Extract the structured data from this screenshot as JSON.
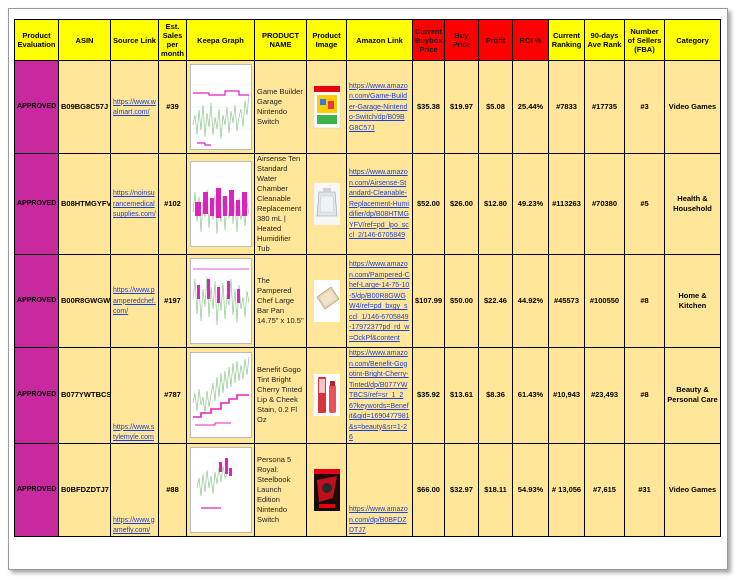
{
  "headers": {
    "eval": "Product Evaluation",
    "asin": "ASIN",
    "source": "Source Link",
    "sales": "Est. Sales per month",
    "keepa": "Keepa Graph",
    "name": "PRODUCT NAME",
    "image": "Product Image",
    "amazon": "Amazon Link",
    "buybox": "Current Buybox Price",
    "buy": "Buy Price",
    "profit": "Profit",
    "roi": "ROI %",
    "rank": "Current Ranking",
    "avg": "90-days Ave Rank",
    "sellers": "Number of Sellers (FBA)",
    "category": "Category"
  },
  "rows": [
    {
      "eval": "APPROVED",
      "asin": "B09BG8C57J",
      "source": "https://www.walmart.com/",
      "sales": "#39",
      "name": "Game Builder Garage Nintendo Switch",
      "amazon": "https://www.amazon.com/Game-Builder-Garage-Nintendo-Switch/dp/B09BG8C57J",
      "buybox": "$35.38",
      "buy": "$19.97",
      "profit": "$5.08",
      "roi": "25.44%",
      "rank": "#7833",
      "avg": "#17735",
      "sellers": "#3",
      "category": "Video Games",
      "image_icon": "game-builder-garage-box-icon"
    },
    {
      "eval": "APPROVED",
      "asin": "B08HTMGYFV",
      "source": "https://noinsurancemedicalsupplies.com/",
      "sales": "#102",
      "name": "Airsense Ten Standard Water Chamber Cleanable Replacement 380 mL | Heated Humidifier Tub",
      "amazon": "https://www.amazon.com/Airsense-Standard-Cleanable-Replacement-Humidifier/dp/B08HTMGYFV/ref=pd_lpo_sccl_2/146-6705849",
      "buybox": "$52.00",
      "buy": "$26.00",
      "profit": "$12.80",
      "roi": "49.23%",
      "rank": "#113263",
      "avg": "#70380",
      "sellers": "#5",
      "category": "Health & Household",
      "image_icon": "water-chamber-icon"
    },
    {
      "eval": "APPROVED",
      "asin": "B00R8GWGW4",
      "source": "https://www.pamperedchef.com/",
      "sales": "#197",
      "name": "The Pampered Chef Large Bar Pan 14.75\" x 10.5\"",
      "amazon": "https://www.amazon.com/Pampered-Chef-Large-14-75-10-5/dp/B00R8GWGW4/ref=pd_bxgy_sccl_1/146-6705849-1797237?pd_rd_w=OckPf&content",
      "buybox": "$107.99",
      "buy": "$50.00",
      "profit": "$22.46",
      "roi": "44.92%",
      "rank": "#45573",
      "avg": "#100550",
      "sellers": "#8",
      "category": "Home & Kitchen",
      "image_icon": "bar-pan-icon"
    },
    {
      "eval": "APPROVED",
      "asin": "B077YWTBCS",
      "source": "https://www.stylemyle.com",
      "sales": "#787",
      "name": "Benefit Gogo Tint Bright Cherry Tinted Lip & Cheek Stain, 0.2 Fl Oz",
      "amazon": "https://www.amazon.com/Benefit-Gogotint-Bright-Cherry-Tinted/dp/B077YWTBCS/ref=sr_1_26?keywords=Benefit&qid=1690477981&s=beauty&sr=1-26",
      "buybox": "$35.92",
      "buy": "$13.61",
      "profit": "$8.36",
      "roi": "61.43%",
      "rank": "#10,943",
      "avg": "#23,493",
      "sellers": "#8",
      "category": "Beauty & Personal Care",
      "image_icon": "lip-tint-bottle-icon"
    },
    {
      "eval": "APPROVED",
      "asin": "B0BFDZDTJ7",
      "source": "https://www.gamefly.com/",
      "sales": "#88",
      "name": "Persona 5 Royal: Steelbook Launch Edition Nintendo Switch",
      "amazon": "https://www.amazon.com/dp/B0BFDZDTJ7",
      "buybox": "$66.00",
      "buy": "$32.97",
      "profit": "$18.11",
      "roi": "54.93%",
      "rank": "# 13,056",
      "avg": "#7,615",
      "sellers": "#31",
      "category": "Video Games",
      "image_icon": "persona-5-box-icon"
    }
  ]
}
